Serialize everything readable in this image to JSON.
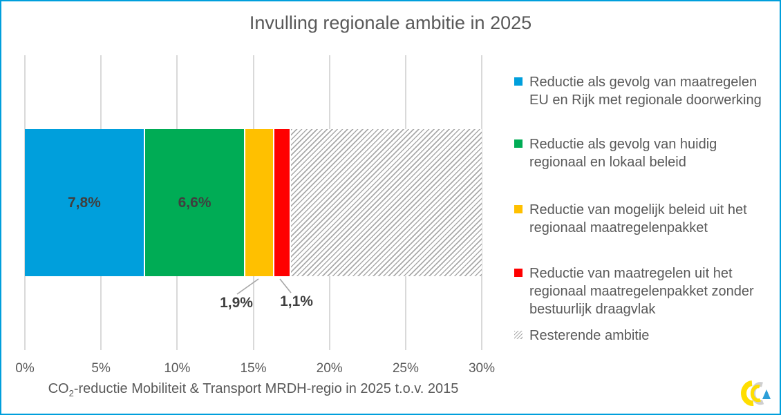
{
  "window": {
    "background": "#ffffff",
    "border_color": "#009FDC"
  },
  "chart_data": {
    "type": "bar",
    "orientation": "horizontal-stacked",
    "title": "Invulling regionale ambitie in 2025",
    "xlabel": "CO2-reductie Mobiliteit & Transport MRDH-regio in 2025 t.o.v. 2015",
    "xlabel_parts": {
      "prefix": "CO",
      "sub": "2",
      "rest": "-reductie Mobiliteit & Transport MRDH-regio in 2025 t.o.v. 2015"
    },
    "xlim": [
      0,
      30
    ],
    "x_ticks": [
      "0%",
      "5%",
      "10%",
      "15%",
      "20%",
      "25%",
      "30%"
    ],
    "x_tick_values": [
      0,
      5,
      10,
      15,
      20,
      25,
      30
    ],
    "grid": true,
    "legend_position": "right",
    "series": [
      {
        "name": "Reductie als gevolg van maatregelen EU en Rijk met regionale doorwerking",
        "value": 7.8,
        "label": "7,8%",
        "color": "#009FDC",
        "pattern": "solid",
        "label_placement": "inside"
      },
      {
        "name": "Reductie als gevolg van huidig regionaal en lokaal beleid",
        "value": 6.6,
        "label": "6,6%",
        "color": "#00AC55",
        "pattern": "solid",
        "label_placement": "inside"
      },
      {
        "name": "Reductie van mogelijk beleid uit het regionaal maatregelenpakket",
        "value": 1.9,
        "label": "1,9%",
        "color": "#FFC000",
        "pattern": "solid",
        "label_placement": "callout-below"
      },
      {
        "name": "Reductie van maatregelen uit het regionaal maatregelenpakket zonder bestuurlijk draagvlak",
        "value": 1.1,
        "label": "1,1%",
        "color": "#FF0000",
        "pattern": "solid",
        "label_placement": "callout-below"
      },
      {
        "name": "Resterende ambitie",
        "value": 12.6,
        "label": "",
        "color": "#A9A9A9",
        "pattern": "diagonal-hatch",
        "label_placement": "none"
      }
    ],
    "colors": {
      "gridline": "#D9D9D9",
      "text": "#595959",
      "data_label": "#3F3F3F",
      "leader_line": "#A6A6A6"
    }
  },
  "logo": {
    "name": "mrdh-ribbon-logo",
    "colors": {
      "yellow": "#FFDE00",
      "gray": "#CFCFCF",
      "blue": "#2D9FD8"
    }
  }
}
